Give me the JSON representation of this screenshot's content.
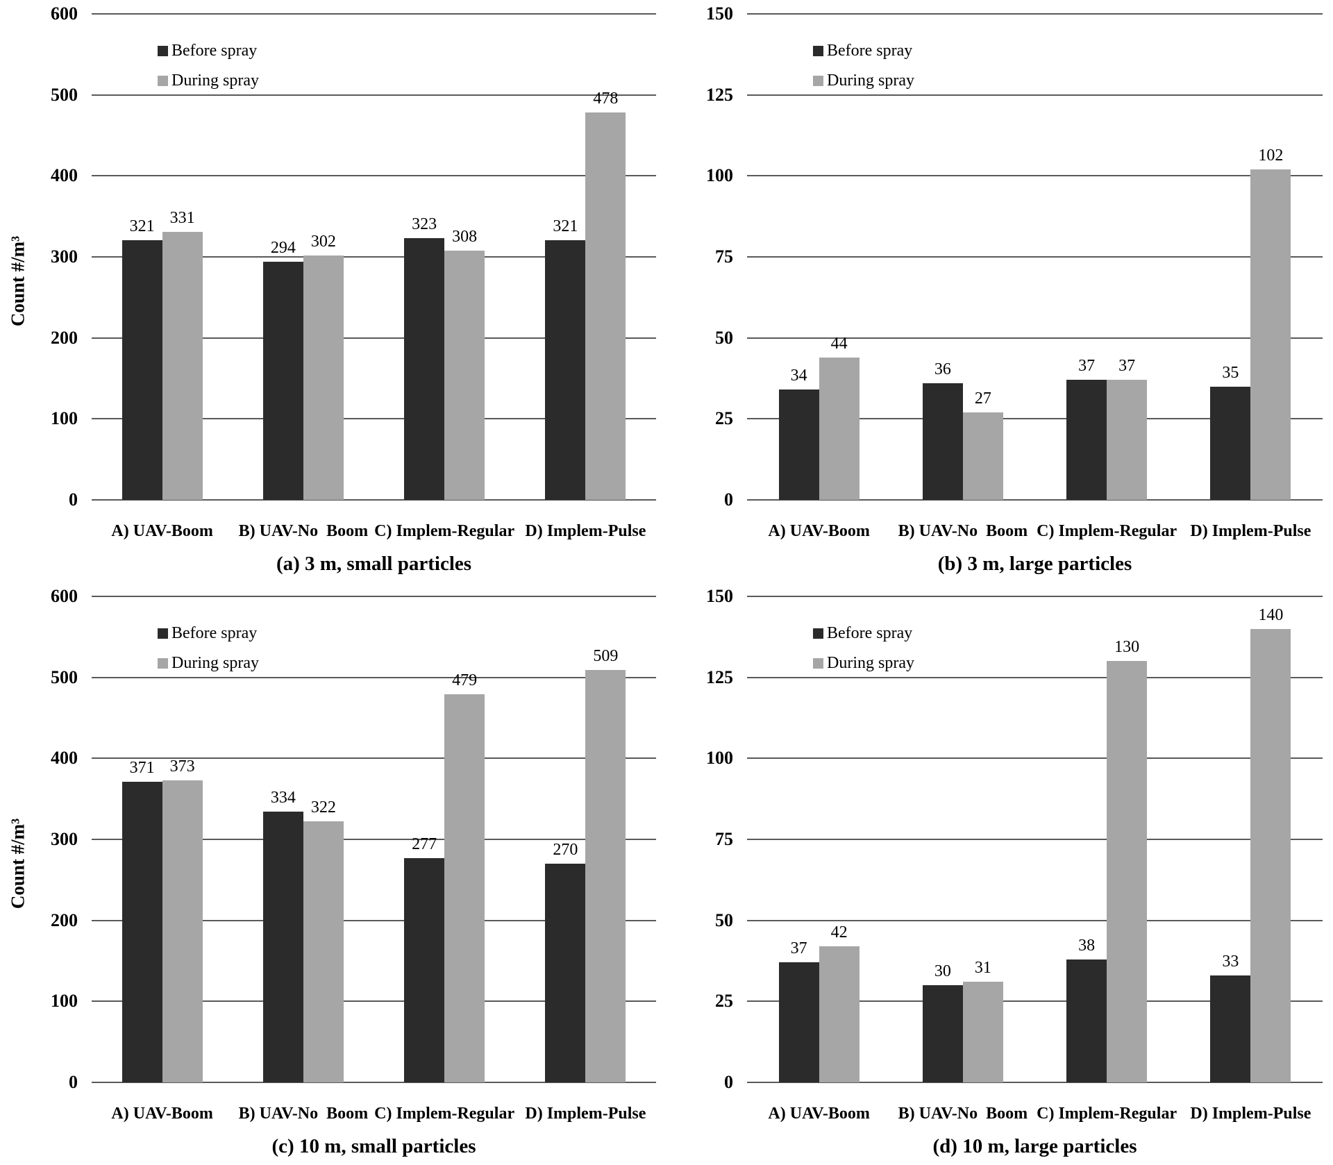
{
  "figure": {
    "background": "#ffffff"
  },
  "colors": {
    "before_spray": "#2b2b2b",
    "during_spray": "#a6a6a6",
    "gridline": "#595959",
    "text": "#000000"
  },
  "legend": {
    "before_label": "Before spray",
    "during_label": "During spray",
    "position": "top-left-inside"
  },
  "chart_data": [
    {
      "type": "bar",
      "title": "(a) 3 m, small particles",
      "ylabel": "Count #/m³",
      "xlabel": "",
      "categories": [
        "A) UAV-Boom",
        "B) UAV-No  Boom",
        "C) Implem-Regular",
        "D) Implem-Pulse"
      ],
      "series": [
        {
          "name": "Before spray",
          "values": [
            321,
            294,
            323,
            321
          ]
        },
        {
          "name": "During spray",
          "values": [
            331,
            302,
            308,
            478
          ]
        }
      ],
      "ylim": [
        0,
        600
      ],
      "yticks": [
        0,
        100,
        200,
        300,
        400,
        500,
        600
      ],
      "grid": true,
      "legend_position": "top-left-inside"
    },
    {
      "type": "bar",
      "title": "(b) 3 m, large particles",
      "ylabel": "",
      "xlabel": "",
      "categories": [
        "A) UAV-Boom",
        "B) UAV-No  Boom",
        "C) Implem-Regular",
        "D) Implem-Pulse"
      ],
      "series": [
        {
          "name": "Before spray",
          "values": [
            34,
            36,
            37,
            35
          ]
        },
        {
          "name": "During spray",
          "values": [
            44,
            27,
            37,
            102
          ]
        }
      ],
      "ylim": [
        0,
        150
      ],
      "yticks": [
        0,
        25,
        50,
        75,
        100,
        125,
        150
      ],
      "grid": true,
      "legend_position": "top-left-inside"
    },
    {
      "type": "bar",
      "title": "(c) 10 m, small particles",
      "ylabel": "Count #/m³",
      "xlabel": "",
      "categories": [
        "A) UAV-Boom",
        "B) UAV-No  Boom",
        "C) Implem-Regular",
        "D) Implem-Pulse"
      ],
      "series": [
        {
          "name": "Before spray",
          "values": [
            371,
            334,
            277,
            270
          ]
        },
        {
          "name": "During spray",
          "values": [
            373,
            322,
            479,
            509
          ]
        }
      ],
      "ylim": [
        0,
        600
      ],
      "yticks": [
        0,
        100,
        200,
        300,
        400,
        500,
        600
      ],
      "grid": true,
      "legend_position": "top-left-inside"
    },
    {
      "type": "bar",
      "title": "(d) 10 m, large particles",
      "ylabel": "",
      "xlabel": "",
      "categories": [
        "A) UAV-Boom",
        "B) UAV-No  Boom",
        "C) Implem-Regular",
        "D) Implem-Pulse"
      ],
      "series": [
        {
          "name": "Before spray",
          "values": [
            37,
            30,
            38,
            33
          ]
        },
        {
          "name": "During spray",
          "values": [
            42,
            31,
            130,
            140
          ]
        }
      ],
      "ylim": [
        0,
        150
      ],
      "yticks": [
        0,
        25,
        50,
        75,
        100,
        125,
        150
      ],
      "grid": true,
      "legend_position": "top-left-inside"
    }
  ]
}
